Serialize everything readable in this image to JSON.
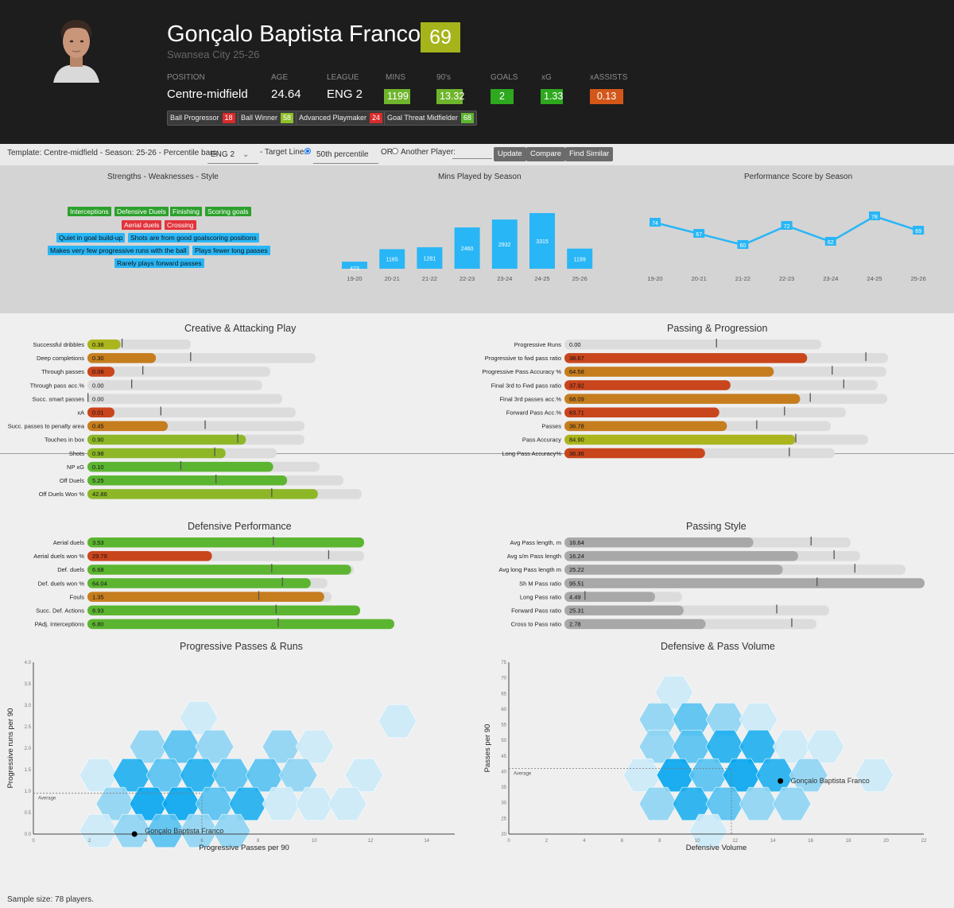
{
  "player": {
    "name": "Gonçalo Baptista Franco",
    "score": "69",
    "team": "Swansea City 25-26"
  },
  "stats": [
    {
      "header": "POSITION",
      "value": "Centre-midfield"
    },
    {
      "header": "AGE",
      "value": "24.64"
    },
    {
      "header": "LEAGUE",
      "value": "ENG 2"
    },
    {
      "header": "MINS",
      "value": "1199",
      "color": "#6fb52c"
    },
    {
      "header": "90's",
      "value": "13.32",
      "color": "#6fb52c"
    },
    {
      "header": "GOALS",
      "value": "2",
      "color": "#2ea81e"
    },
    {
      "header": "xG",
      "value": "1.33",
      "color": "#2ea81e"
    },
    {
      "header": "xASSISTS",
      "value": "0.13",
      "color": "#d4571a"
    }
  ],
  "archetypes": [
    {
      "label": "Ball Progressor",
      "score": "18",
      "color": "#d92b2b"
    },
    {
      "label": "Ball Winner",
      "score": "58",
      "color": "#8fbf2a"
    },
    {
      "label": "Advanced Playmaker",
      "score": "24",
      "color": "#d92b2b"
    },
    {
      "label": "Goal Threat Midfielder",
      "score": "68",
      "color": "#5cb531"
    }
  ],
  "controls": {
    "template": "Template: Centre-midfield - Season: 25-26 - Percentile bars:",
    "league": "ENG 2",
    "target_label": "- Target Line:",
    "target_value": "50th percentile",
    "or_label": "OR",
    "another_label": "Another Player:",
    "update": "Update",
    "compare": "Compare",
    "find_similar": "Find Similar"
  },
  "strengths": {
    "title": "Strengths - Weaknesses - Style",
    "strengths": [
      "Interceptions",
      "Defensive Duels",
      "Finishing",
      "Scoring goals"
    ],
    "weaknesses": [
      "Aerial duels",
      "Crossing"
    ],
    "style": [
      "Quiet in goal build-up",
      "Shots are from good goalscoring positions",
      "Makes very few progressive runs with the ball",
      "Plays fewer long passes",
      "Rarely plays forward passes"
    ]
  },
  "mins_chart": {
    "title": "Mins Played by Season",
    "chart_data": {
      "type": "bar",
      "categories": [
        "19-20",
        "20-21",
        "21-22",
        "22-23",
        "23-24",
        "24-25",
        "25-26"
      ],
      "values": [
        423,
        1165,
        1281,
        2460,
        2932,
        3315,
        1199
      ]
    }
  },
  "perf_chart": {
    "title": "Performance Score by Season",
    "chart_data": {
      "type": "line",
      "categories": [
        "19-20",
        "20-21",
        "21-22",
        "22-23",
        "23-24",
        "24-25",
        "25-26"
      ],
      "values": [
        74,
        67,
        60,
        72,
        62,
        78,
        69
      ]
    }
  },
  "sections": [
    {
      "title": "Creative & Attacking Play",
      "metrics": [
        {
          "label": "Successful dribbles",
          "value": "0.38",
          "pct": 0.32,
          "target": 0.33,
          "color": "#abb51d"
        },
        {
          "label": "Deep completions",
          "value": "0.30",
          "pct": 0.3,
          "target": 0.45,
          "color": "#c67d1e"
        },
        {
          "label": "Through passes",
          "value": "0.08",
          "pct": 0.08,
          "target": 0.3,
          "color": "#c9451c"
        },
        {
          "label": "Through pass acc.%",
          "value": "0.00",
          "pct": 0.0,
          "target": 0.25,
          "color": "#c9451c"
        },
        {
          "label": "Succ. smart passes",
          "value": "0.00",
          "pct": 0.0,
          "target": 0.0,
          "color": "#c9451c"
        },
        {
          "label": "xA",
          "value": "0.01",
          "pct": 0.06,
          "target": 0.35,
          "color": "#c9451c"
        },
        {
          "label": "Succ. passes to penalty area",
          "value": "0.45",
          "pct": 0.37,
          "target": 0.54,
          "color": "#c67d1e"
        },
        {
          "label": "Touches in box",
          "value": "0.90",
          "pct": 0.73,
          "target": 0.69,
          "color": "#8db727"
        },
        {
          "label": "Shots",
          "value": "0.98",
          "pct": 0.73,
          "target": 0.67,
          "color": "#8db727"
        },
        {
          "label": "NP xG",
          "value": "0.10",
          "pct": 0.8,
          "target": 0.4,
          "color": "#5cb531"
        },
        {
          "label": "Off Duels",
          "value": "5.25",
          "pct": 0.78,
          "target": 0.5,
          "color": "#5cb531"
        },
        {
          "label": "Off Duels Won %",
          "value": "42.86",
          "pct": 0.84,
          "target": 0.67,
          "color": "#8db727"
        }
      ]
    },
    {
      "title": "Passing & Progression",
      "metrics": [
        {
          "label": "Progressive Runs",
          "value": "0.00",
          "pct": 0.0,
          "target": 0.59,
          "color": "#c9451c"
        },
        {
          "label": "Progressive to fwd pass ratio",
          "value": "38.67",
          "pct": 0.75,
          "target": 0.93,
          "color": "#c9451c"
        },
        {
          "label": "Progressive Pass Accuracy %",
          "value": "64.58",
          "pct": 0.65,
          "target": 0.83,
          "color": "#c67d1e"
        },
        {
          "label": "Final 3rd to Fwd pass ratio",
          "value": "37.92",
          "pct": 0.53,
          "target": 0.89,
          "color": "#c9451c"
        },
        {
          "label": "Final 3rd passes acc.%",
          "value": "68.09",
          "pct": 0.73,
          "target": 0.76,
          "color": "#c67d1e"
        },
        {
          "label": "Forward Pass Acc.%",
          "value": "63.71",
          "pct": 0.55,
          "target": 0.78,
          "color": "#c9451c"
        },
        {
          "label": "Passes",
          "value": "36.78",
          "pct": 0.61,
          "target": 0.72,
          "color": "#c67d1e"
        },
        {
          "label": "Pass Accuracy",
          "value": "84.90",
          "pct": 0.76,
          "target": 0.76,
          "color": "#abb51d"
        },
        {
          "label": "Long Pass Accuracy%",
          "value": "36.36",
          "pct": 0.52,
          "target": 0.83,
          "color": "#c9451c"
        }
      ]
    },
    {
      "title": "Defensive Performance",
      "metrics": [
        {
          "label": "Aerial duels",
          "value": "3.53",
          "pct": 1.0,
          "target": 0.67,
          "color": "#5cb531"
        },
        {
          "label": "Aerial duels won %",
          "value": "29.79",
          "pct": 0.45,
          "target": 0.87,
          "color": "#c9451c"
        },
        {
          "label": "Def. duels",
          "value": "6.68",
          "pct": 0.99,
          "target": 0.69,
          "color": "#5cb531"
        },
        {
          "label": "Def. duels won %",
          "value": "64.04",
          "pct": 0.93,
          "target": 0.81,
          "color": "#5cb531"
        },
        {
          "label": "Fouls",
          "value": "1.35",
          "pct": 0.97,
          "target": 0.7,
          "color": "#c67d1e"
        },
        {
          "label": "Succ. Def. Actions",
          "value": "8.93",
          "pct": 1.0,
          "target": 0.69,
          "color": "#5cb531"
        },
        {
          "label": "PAdj. Interceptions",
          "value": "6.80",
          "pct": 1.0,
          "target": 0.62,
          "color": "#5cb531"
        }
      ]
    },
    {
      "title": "Passing Style",
      "metrics": [
        {
          "label": "Avg Pass length, m",
          "value": "16.64",
          "pct": 0.66,
          "target": 0.86,
          "color": "#a8a8a8"
        },
        {
          "label": "Avg s/m Pass length",
          "value": "16.24",
          "pct": 0.79,
          "target": 0.91,
          "color": "#a8a8a8"
        },
        {
          "label": "Avg long Pass length m",
          "value": "25.22",
          "pct": 0.64,
          "target": 0.85,
          "color": "#a8a8a8"
        },
        {
          "label": "Sh M Pass ratio",
          "value": "95.51",
          "pct": 1.0,
          "target": 0.7,
          "color": "#a8a8a8"
        },
        {
          "label": "Long Pass ratio",
          "value": "4.49",
          "pct": 0.77,
          "target": 0.17,
          "color": "#a8a8a8"
        },
        {
          "label": "Forward Pass ratio",
          "value": "25.31",
          "pct": 0.45,
          "target": 0.8,
          "color": "#a8a8a8"
        },
        {
          "label": "Cross to Pass ratio",
          "value": "2.78",
          "pct": 0.56,
          "target": 0.9,
          "color": "#a8a8a8"
        }
      ]
    }
  ],
  "scatter1": {
    "title": "Progressive Passes & Runs",
    "chart_data": {
      "type": "scatter",
      "xlabel": "Progressive Passes per 90",
      "ylabel": "Progressive runs per 90",
      "xlim": [
        0,
        15
      ],
      "ylim": [
        0,
        4
      ],
      "xticks": [
        0,
        2,
        4,
        6,
        8,
        10,
        12,
        14
      ],
      "yticks": [
        0.0,
        0.5,
        1.0,
        1.5,
        2.0,
        2.5,
        3.0,
        3.5,
        4.0
      ],
      "average": {
        "x": 6.0,
        "y": 0.95,
        "label": "Average"
      },
      "player": {
        "x": 3.6,
        "y": 0.0,
        "label": "Gonçalo Baptista Franco"
      }
    }
  },
  "scatter2": {
    "title": "Defensive & Pass Volume",
    "chart_data": {
      "type": "scatter",
      "xlabel": "Defensive Volume",
      "ylabel": "Passes per 90",
      "xlim": [
        0,
        22
      ],
      "ylim": [
        20,
        75
      ],
      "xticks": [
        0,
        2,
        4,
        6,
        8,
        10,
        12,
        14,
        16,
        18,
        20,
        22
      ],
      "yticks": [
        20,
        25,
        30,
        35,
        40,
        45,
        50,
        55,
        60,
        65,
        70,
        75
      ],
      "average": {
        "x": 11.8,
        "y": 41,
        "label": "Average"
      },
      "player": {
        "x": 14.4,
        "y": 37,
        "label": "Gonçalo Baptista Franco"
      }
    }
  },
  "footer": "Sample size: 78 players."
}
